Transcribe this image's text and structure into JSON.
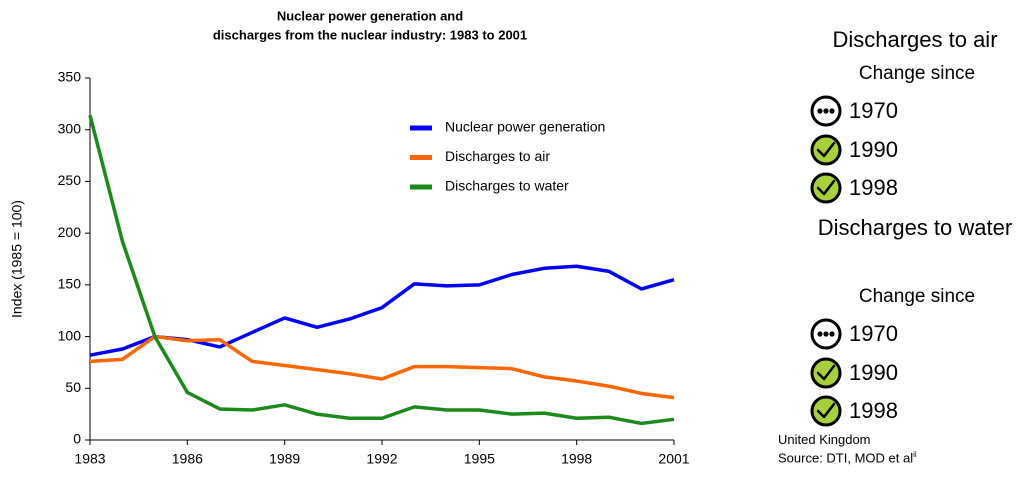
{
  "chart_data": {
    "type": "line",
    "title": [
      "Nuclear power generation and",
      "discharges from the nuclear industry: 1983 to 2001"
    ],
    "y_label": "Index (1985 = 100)",
    "x": [
      1983,
      1984,
      1985,
      1986,
      1987,
      1988,
      1989,
      1990,
      1991,
      1992,
      1993,
      1994,
      1995,
      1996,
      1997,
      1998,
      1999,
      2000,
      2001
    ],
    "xlim": [
      1983,
      2001
    ],
    "xticks": [
      1983,
      1986,
      1989,
      1992,
      1995,
      1998,
      2001
    ],
    "ylim": [
      0,
      350
    ],
    "yticks": [
      0,
      50,
      100,
      150,
      200,
      250,
      300,
      350
    ],
    "legend": "upper right",
    "series": [
      {
        "name": "Nuclear power generation",
        "color": "#0000ff",
        "values": [
          82,
          88,
          100,
          97,
          90,
          104,
          118,
          109,
          117,
          128,
          151,
          149,
          150,
          160,
          166,
          168,
          163,
          146,
          155
        ]
      },
      {
        "name": "Discharges to air",
        "color": "#ff6600",
        "values": [
          76,
          78,
          100,
          96,
          97,
          76,
          72,
          68,
          64,
          59,
          71,
          71,
          70,
          69,
          61,
          57,
          52,
          45,
          41
        ]
      },
      {
        "name": "Discharges to water",
        "color": "#1a8a1a",
        "values": [
          314,
          192,
          100,
          46,
          30,
          29,
          34,
          25,
          21,
          21,
          32,
          29,
          29,
          25,
          26,
          21,
          22,
          16,
          20
        ]
      }
    ]
  },
  "panel": {
    "groups": [
      {
        "title": "Discharges to air",
        "subtitle": "Change since",
        "items": [
          "1970",
          "1990",
          "1998"
        ]
      },
      {
        "title": "Discharges to water",
        "subtitle": "Change since",
        "items": [
          "1970",
          "1990",
          "1998"
        ]
      }
    ],
    "notes": [
      "United Kingdom",
      "Source: DTI, MOD et al"
    ],
    "note_sup": "ii"
  }
}
